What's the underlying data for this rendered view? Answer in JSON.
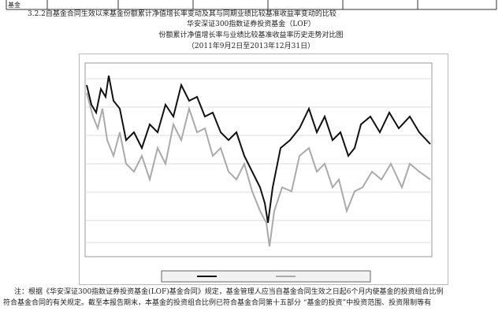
{
  "header": {
    "table_tail": "基金"
  },
  "section": {
    "heading": "3.2.2自基金合同生效以来基金份额累计净值增长率变动及其与同期业绩比较基准收益率变动的比较",
    "fund_name": "华安深证300指数证券投资基金（LOF）",
    "figure_title": "份额累计净值增长率与业绩比较基准收益率历史走势对比图",
    "period": "（2011年9月2日至2013年12月31日）"
  },
  "note": {
    "line1": "注：根据《华安深证300指数证券投资基金(LOF)基金合同》规定，基金管理人应当自基金合同生效之日起6个月内使基金的投资组合比例",
    "line2": "符合基金合同的有关规定。截至本报告期末，本基金的投资组合比例已符合基金合同第十五部分 “基金的投资”中投资范围、投资限制等有"
  }
}
